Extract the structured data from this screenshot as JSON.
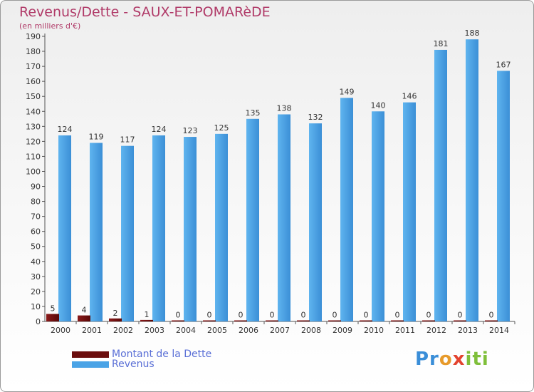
{
  "chart_data": {
    "type": "bar",
    "title": "Revenus/Dette - SAUX-ET-POMARèDE",
    "subtitle": "(en milliers d'€)",
    "categories": [
      "2000",
      "2001",
      "2002",
      "2003",
      "2004",
      "2005",
      "2006",
      "2007",
      "2008",
      "2009",
      "2010",
      "2011",
      "2012",
      "2013",
      "2014"
    ],
    "series": [
      {
        "name": "Montant de la Dette",
        "color": "#6b0d0d",
        "values": [
          5,
          4,
          2,
          1,
          0,
          0,
          0,
          0,
          0,
          0,
          0,
          0,
          0,
          0,
          0
        ]
      },
      {
        "name": "Revenus",
        "color": "#4aa3e6",
        "values": [
          124,
          119,
          117,
          124,
          123,
          125,
          135,
          138,
          132,
          149,
          140,
          146,
          181,
          188,
          167
        ]
      }
    ],
    "ylim": [
      0,
      190
    ],
    "yticks": [
      0,
      10,
      20,
      30,
      40,
      50,
      60,
      70,
      80,
      90,
      100,
      110,
      120,
      130,
      140,
      150,
      160,
      170,
      180,
      190
    ],
    "grid": false,
    "legend": "bottom-left"
  },
  "logo": {
    "text": "Proxiti"
  }
}
